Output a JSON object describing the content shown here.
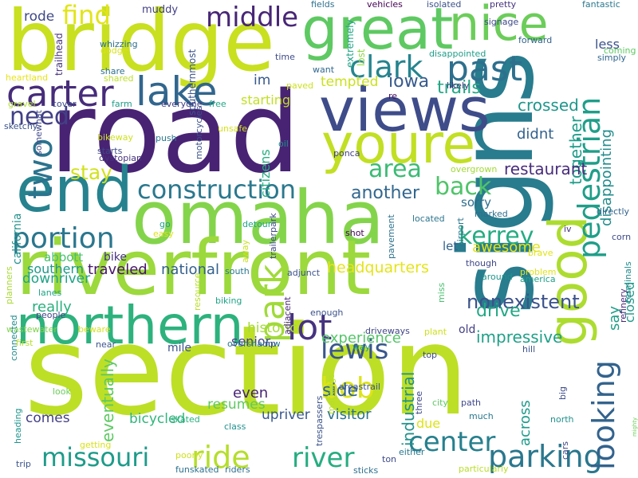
{
  "words": [
    {
      "text": "section",
      "color": "#bddf26",
      "vertical": false
    },
    {
      "text": "road",
      "color": "#482374",
      "vertical": false
    },
    {
      "text": "signs",
      "color": "#287c8e",
      "vertical": true
    },
    {
      "text": "omaha",
      "color": "#84d44b",
      "vertical": false
    },
    {
      "text": "riverfront",
      "color": "#9bd93c",
      "vertical": false
    },
    {
      "text": "bridge",
      "color": "#c8e020",
      "vertical": false
    },
    {
      "text": "views",
      "color": "#3e4c8a",
      "vertical": false
    },
    {
      "text": "great",
      "color": "#5ec962",
      "vertical": false
    },
    {
      "text": "end",
      "color": "#26828e",
      "vertical": false
    },
    {
      "text": "youre",
      "color": "#c2df23",
      "vertical": false
    },
    {
      "text": "northern",
      "color": "#2db27d",
      "vertical": false
    },
    {
      "text": "good",
      "color": "#addc30",
      "vertical": true
    },
    {
      "text": "nice",
      "color": "#6ccd5a",
      "vertical": false
    },
    {
      "text": "carter",
      "color": "#472c7a",
      "vertical": false
    },
    {
      "text": "lake",
      "color": "#31668e",
      "vertical": false
    },
    {
      "text": "middle",
      "color": "#482677",
      "vertical": false
    },
    {
      "text": "find",
      "color": "#e2e418",
      "vertical": false
    },
    {
      "text": "clark",
      "color": "#25848e",
      "vertical": false
    },
    {
      "text": "past",
      "color": "#2e6f8e",
      "vertical": false
    },
    {
      "text": "construction",
      "color": "#2a788e",
      "vertical": false
    },
    {
      "text": "portion",
      "color": "#2a768e",
      "vertical": false
    },
    {
      "text": "pedestrian",
      "color": "#1f9e89",
      "vertical": true
    },
    {
      "text": "kerrey",
      "color": "#25ac82",
      "vertical": false
    },
    {
      "text": "lewis",
      "color": "#39568c",
      "vertical": false
    },
    {
      "text": "park",
      "color": "#a0da39",
      "vertical": true
    },
    {
      "text": "bob",
      "color": "#dde318",
      "vertical": false
    },
    {
      "text": "lot",
      "color": "#46337f",
      "vertical": false
    },
    {
      "text": "ride",
      "color": "#b5de2b",
      "vertical": false
    },
    {
      "text": "river",
      "color": "#26ad81",
      "vertical": false
    },
    {
      "text": "missouri",
      "color": "#1e9b8a",
      "vertical": false
    },
    {
      "text": "center",
      "color": "#27808e",
      "vertical": false
    },
    {
      "text": "parking",
      "color": "#2a778e",
      "vertical": false
    },
    {
      "text": "looking",
      "color": "#33638d",
      "vertical": true
    },
    {
      "text": "two",
      "color": "#2c738e",
      "vertical": true
    },
    {
      "text": "area",
      "color": "#3bbb75",
      "vertical": false
    },
    {
      "text": "back",
      "color": "#50c46a",
      "vertical": false
    },
    {
      "text": "need",
      "color": "#424086",
      "vertical": false
    },
    {
      "text": "another",
      "color": "#31678e",
      "vertical": false
    },
    {
      "text": "stay",
      "color": "#d2e21b",
      "vertical": false
    },
    {
      "text": "iowa",
      "color": "#375a8c",
      "vertical": false
    },
    {
      "text": "trails",
      "color": "#22a884",
      "vertical": false
    },
    {
      "text": "crossed",
      "color": "#1f978b",
      "vertical": false
    },
    {
      "text": "together",
      "color": "#1e9c89",
      "vertical": true
    },
    {
      "text": "didnt",
      "color": "#33638d",
      "vertical": false
    },
    {
      "text": "restaurant",
      "color": "#472d7b",
      "vertical": false
    },
    {
      "text": "disappointing",
      "color": "#228c8d",
      "vertical": true
    },
    {
      "text": "nonexistent",
      "color": "#3b528b",
      "vertical": false
    },
    {
      "text": "headquarters",
      "color": "#e5e419",
      "vertical": false
    },
    {
      "text": "awesome",
      "color": "#e2e418",
      "vertical": false
    },
    {
      "text": "drive",
      "color": "#22a884",
      "vertical": false
    },
    {
      "text": "impressive",
      "color": "#1fa088",
      "vertical": false
    },
    {
      "text": "industrial",
      "color": "#21918c",
      "vertical": true
    },
    {
      "text": "experience",
      "color": "#54c568",
      "vertical": false
    },
    {
      "text": "side",
      "color": "#33638d",
      "vertical": false
    },
    {
      "text": "even",
      "color": "#482475",
      "vertical": false
    },
    {
      "text": "upriver",
      "color": "#38588c",
      "vertical": false
    },
    {
      "text": "visitor",
      "color": "#2c728e",
      "vertical": false
    },
    {
      "text": "historic",
      "color": "#a5db36",
      "vertical": false
    },
    {
      "text": "senior",
      "color": "#424086",
      "vertical": false
    },
    {
      "text": "national",
      "color": "#34608d",
      "vertical": false
    },
    {
      "text": "traveled",
      "color": "#481668",
      "vertical": false
    },
    {
      "text": "southern",
      "color": "#1f998a",
      "vertical": false
    },
    {
      "text": "really",
      "color": "#29af7f",
      "vertical": false
    },
    {
      "text": "downriver",
      "color": "#20a486",
      "vertical": false
    },
    {
      "text": "california",
      "color": "#21918c",
      "vertical": true
    },
    {
      "text": "bike",
      "color": "#46337f",
      "vertical": false
    },
    {
      "text": "abbott",
      "color": "#48c16e",
      "vertical": false
    },
    {
      "text": "mile",
      "color": "#3b528b",
      "vertical": false
    },
    {
      "text": "eventually",
      "color": "#5ec962",
      "vertical": true
    },
    {
      "text": "bicycled",
      "color": "#31b57b",
      "vertical": false
    },
    {
      "text": "comes",
      "color": "#423f85",
      "vertical": false
    },
    {
      "text": "resumes",
      "color": "#5ec962",
      "vertical": false
    },
    {
      "text": "due",
      "color": "#dde318",
      "vertical": false
    },
    {
      "text": "across",
      "color": "#1e9b8a",
      "vertical": true
    },
    {
      "text": "mighty",
      "color": "#6ece58",
      "vertical": true
    },
    {
      "text": "old",
      "color": "#424086",
      "vertical": false
    },
    {
      "text": "say",
      "color": "#1f9e89",
      "vertical": true
    },
    {
      "text": "closed",
      "color": "#1f9a8a",
      "vertical": true
    },
    {
      "text": "rode",
      "color": "#3f4889",
      "vertical": false
    },
    {
      "text": "im",
      "color": "#38588c",
      "vertical": false
    },
    {
      "text": "starting",
      "color": "#c2df23",
      "vertical": false
    },
    {
      "text": "tempted",
      "color": "#cae11f",
      "vertical": false
    },
    {
      "text": "citizens",
      "color": "#26ad81",
      "vertical": true
    },
    {
      "text": "let",
      "color": "#33638d",
      "vertical": false
    },
    {
      "text": "sorry",
      "color": "#2e6e8e",
      "vertical": false
    },
    {
      "text": "muddy",
      "color": "#424086",
      "vertical": false
    },
    {
      "text": "signage",
      "color": "#3e4a89",
      "vertical": false
    },
    {
      "text": "fields",
      "color": "#2d708e",
      "vertical": false
    },
    {
      "text": "vehicles",
      "color": "#440154",
      "vertical": false
    },
    {
      "text": "isolated",
      "color": "#3b518b",
      "vertical": false
    },
    {
      "text": "pretty",
      "color": "#46327e",
      "vertical": false
    },
    {
      "text": "fantastic",
      "color": "#2a788e",
      "vertical": false
    },
    {
      "text": "forward",
      "color": "#33638d",
      "vertical": false
    },
    {
      "text": "coming",
      "color": "#5ec962",
      "vertical": false
    },
    {
      "text": "simply",
      "color": "#31668e",
      "vertical": false
    },
    {
      "text": "less",
      "color": "#3b528b",
      "vertical": false
    },
    {
      "text": "trailhead",
      "color": "#46327e",
      "vertical": true
    },
    {
      "text": "southernmost",
      "color": "#3a548c",
      "vertical": true
    },
    {
      "text": "extremely",
      "color": "#20a386",
      "vertical": true
    },
    {
      "text": "lost",
      "color": "#8fd744",
      "vertical": true
    },
    {
      "text": "disappointed",
      "color": "#1f9e89",
      "vertical": false
    },
    {
      "text": "whizzing",
      "color": "#2d708e",
      "vertical": false
    },
    {
      "text": "dodge",
      "color": "#d8e219",
      "vertical": false
    },
    {
      "text": "share",
      "color": "#2d708e",
      "vertical": false
    },
    {
      "text": "heartland",
      "color": "#e7e419",
      "vertical": false
    },
    {
      "text": "shared",
      "color": "#bddf26",
      "vertical": false
    },
    {
      "text": "time",
      "color": "#3e4c8a",
      "vertical": false
    },
    {
      "text": "want",
      "color": "#31688e",
      "vertical": false
    },
    {
      "text": "paved",
      "color": "#cde11d",
      "vertical": false
    },
    {
      "text": "likely",
      "color": "#46337f",
      "vertical": false
    },
    {
      "text": "re",
      "color": "#471164",
      "vertical": false
    },
    {
      "text": "gravel",
      "color": "#addc30",
      "vertical": false
    },
    {
      "text": "cover",
      "color": "#3e4c8a",
      "vertical": false
    },
    {
      "text": "farm",
      "color": "#1f9e89",
      "vertical": false
    },
    {
      "text": "everyone",
      "color": "#433e85",
      "vertical": false
    },
    {
      "text": "free",
      "color": "#21a685",
      "vertical": false
    },
    {
      "text": "sketchy",
      "color": "#3b528b",
      "vertical": false
    },
    {
      "text": "somewhat",
      "color": "#3f4889",
      "vertical": true
    },
    {
      "text": "bikeway",
      "color": "#cde11d",
      "vertical": false
    },
    {
      "text": "starts",
      "color": "#3e4a89",
      "vertical": false
    },
    {
      "text": "dystopian",
      "color": "#46337f",
      "vertical": false
    },
    {
      "text": "push",
      "color": "#2a788e",
      "vertical": false
    },
    {
      "text": "motorcycles",
      "color": "#3b518b",
      "vertical": true
    },
    {
      "text": "unsafe",
      "color": "#d5e21a",
      "vertical": false
    },
    {
      "text": "oil",
      "color": "#21908d",
      "vertical": false
    },
    {
      "text": "ponca",
      "color": "#424086",
      "vertical": false
    },
    {
      "text": "overgrown",
      "color": "#a2da37",
      "vertical": false
    },
    {
      "text": "located",
      "color": "#2b758e",
      "vertical": false
    },
    {
      "text": "marked",
      "color": "#2e6f8e",
      "vertical": false
    },
    {
      "text": "airport",
      "color": "#2a768e",
      "vertical": true
    },
    {
      "text": "iv",
      "color": "#46337f",
      "vertical": false
    },
    {
      "text": "corn",
      "color": "#3e4a89",
      "vertical": false
    },
    {
      "text": "directly",
      "color": "#33638d",
      "vertical": false
    },
    {
      "text": "brave",
      "color": "#e1e318",
      "vertical": false
    },
    {
      "text": "though",
      "color": "#3f4889",
      "vertical": false
    },
    {
      "text": "problem",
      "color": "#e1e318",
      "vertical": false
    },
    {
      "text": "america",
      "color": "#1fa088",
      "vertical": false
    },
    {
      "text": "terminals",
      "color": "#228c8d",
      "vertical": true
    },
    {
      "text": "refinery",
      "color": "#482878",
      "vertical": true
    },
    {
      "text": "around",
      "color": "#1f948c",
      "vertical": false
    },
    {
      "text": "go",
      "color": "#1f9e89",
      "vertical": false
    },
    {
      "text": "easy",
      "color": "#dde318",
      "vertical": false
    },
    {
      "text": "detour",
      "color": "#20a486",
      "vertical": false
    },
    {
      "text": "trailerpark",
      "color": "#3f4889",
      "vertical": true
    },
    {
      "text": "shot",
      "color": "#440154",
      "vertical": false
    },
    {
      "text": "pavement",
      "color": "#2c718e",
      "vertical": true
    },
    {
      "text": "south",
      "color": "#2a788e",
      "vertical": false
    },
    {
      "text": "away",
      "color": "#cae11f",
      "vertical": true
    },
    {
      "text": "adjunct",
      "color": "#3b528b",
      "vertical": false
    },
    {
      "text": "adjacent",
      "color": "#482576",
      "vertical": true
    },
    {
      "text": "planners",
      "color": "#a8db34",
      "vertical": true
    },
    {
      "text": "lanes",
      "color": "#20a486",
      "vertical": false
    },
    {
      "text": "people",
      "color": "#3f4889",
      "vertical": false
    },
    {
      "text": "biking",
      "color": "#20a486",
      "vertical": false
    },
    {
      "text": "resource",
      "color": "#b8de29",
      "vertical": true
    },
    {
      "text": "enough",
      "color": "#3b528b",
      "vertical": false
    },
    {
      "text": "miss",
      "color": "#48c16e",
      "vertical": true
    },
    {
      "text": "wastewater",
      "color": "#7fd34e",
      "vertical": false
    },
    {
      "text": "beware",
      "color": "#d2e21b",
      "vertical": false
    },
    {
      "text": "connected",
      "color": "#228c8d",
      "vertical": true
    },
    {
      "text": "first",
      "color": "#b8de29",
      "vertical": false
    },
    {
      "text": "near",
      "color": "#3b528b",
      "vertical": false
    },
    {
      "text": "overshadow",
      "color": "#2a788e",
      "vertical": false
    },
    {
      "text": "np",
      "color": "#3e4a89",
      "vertical": false
    },
    {
      "text": "driveways",
      "color": "#404588",
      "vertical": false
    },
    {
      "text": "plant",
      "color": "#cde11d",
      "vertical": false
    },
    {
      "text": "way",
      "color": "#1f9e89",
      "vertical": false
    },
    {
      "text": "top",
      "color": "#3e4a89",
      "vertical": false
    },
    {
      "text": "hill",
      "color": "#3b528b",
      "vertical": false
    },
    {
      "text": "look",
      "color": "#6ccd5a",
      "vertical": false
    },
    {
      "text": "three",
      "color": "#3f4889",
      "vertical": true
    },
    {
      "text": "city",
      "color": "#5ec962",
      "vertical": false
    },
    {
      "text": "path",
      "color": "#3f4889",
      "vertical": false
    },
    {
      "text": "big",
      "color": "#3e4c8a",
      "vertical": true
    },
    {
      "text": "class",
      "color": "#21908d",
      "vertical": false
    },
    {
      "text": "markings",
      "color": "#b8de29",
      "vertical": true
    },
    {
      "text": "areastrail",
      "color": "#3b528b",
      "vertical": false
    },
    {
      "text": "much",
      "color": "#2a788e",
      "vertical": false
    },
    {
      "text": "north",
      "color": "#21918c",
      "vertical": false
    },
    {
      "text": "cars",
      "color": "#3f4889",
      "vertical": true
    },
    {
      "text": "heading",
      "color": "#1f948c",
      "vertical": true
    },
    {
      "text": "getting",
      "color": "#d8e219",
      "vertical": false
    },
    {
      "text": "trip",
      "color": "#3b528b",
      "vertical": false
    },
    {
      "text": "skated",
      "color": "#29af7f",
      "vertical": false
    },
    {
      "text": "poorly",
      "color": "#cde11d",
      "vertical": false
    },
    {
      "text": "funskated",
      "color": "#2c718e",
      "vertical": false
    },
    {
      "text": "riders",
      "color": "#2e6e8e",
      "vertical": false
    },
    {
      "text": "trespassers",
      "color": "#3b528b",
      "vertical": true
    },
    {
      "text": "either",
      "color": "#2a788e",
      "vertical": false
    },
    {
      "text": "ton",
      "color": "#3e4a89",
      "vertical": false
    },
    {
      "text": "sticks",
      "color": "#2d708e",
      "vertical": false
    },
    {
      "text": "particularly",
      "color": "#b8de29",
      "vertical": false
    }
  ]
}
